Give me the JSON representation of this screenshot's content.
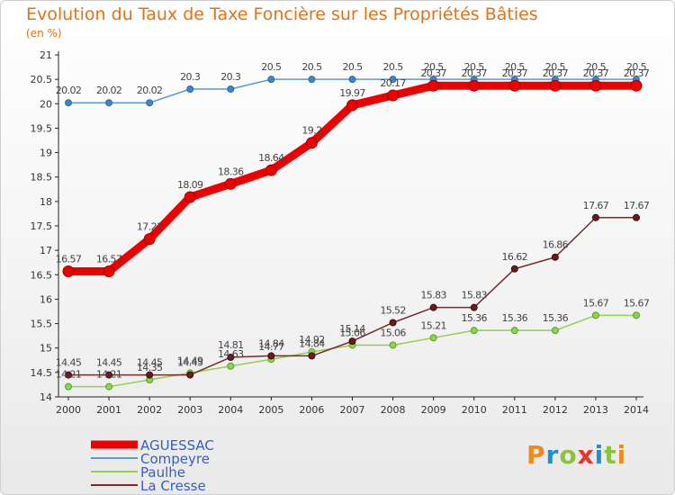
{
  "chart_data": {
    "type": "line",
    "title": "Evolution du Taux de Taxe Foncière sur les Propriétés Bâties",
    "ylabel": "(en %)",
    "xlabel": "",
    "ylim": [
      14,
      21
    ],
    "yticks": [
      14,
      14.5,
      15,
      15.5,
      16,
      16.5,
      17,
      17.5,
      18,
      18.5,
      19,
      19.5,
      20,
      20.5,
      21
    ],
    "x": [
      2000,
      2001,
      2002,
      2003,
      2004,
      2005,
      2006,
      2007,
      2008,
      2009,
      2010,
      2011,
      2012,
      2013,
      2014
    ],
    "grid": false,
    "legend_position": "bottom-left",
    "series": [
      {
        "name": "AGUESSAC",
        "color": "#ee0000",
        "values": [
          16.57,
          16.57,
          17.23,
          18.09,
          18.36,
          18.64,
          19.2,
          19.97,
          20.17,
          20.37,
          20.37,
          20.37,
          20.37,
          20.37,
          20.37
        ]
      },
      {
        "name": "Compeyre",
        "color": "#5b9bd5",
        "values": [
          20.02,
          20.02,
          20.02,
          20.3,
          20.3,
          20.5,
          20.5,
          20.5,
          20.5,
          20.5,
          20.5,
          20.5,
          20.5,
          20.5,
          20.5
        ]
      },
      {
        "name": "Paulhe",
        "color": "#92d050",
        "values": [
          14.21,
          14.21,
          14.35,
          14.49,
          14.63,
          14.77,
          14.92,
          15.06,
          15.06,
          15.21,
          15.36,
          15.36,
          15.36,
          15.67,
          15.67
        ]
      },
      {
        "name": "La Cresse",
        "color": "#7a2a2a",
        "values": [
          14.45,
          14.45,
          14.45,
          14.45,
          14.81,
          14.84,
          14.84,
          15.14,
          15.52,
          15.83,
          15.83,
          16.62,
          16.86,
          17.67,
          17.67
        ]
      }
    ]
  },
  "logo": {
    "letters": [
      "P",
      "r",
      "o",
      "x",
      "i",
      "t",
      "i"
    ]
  }
}
